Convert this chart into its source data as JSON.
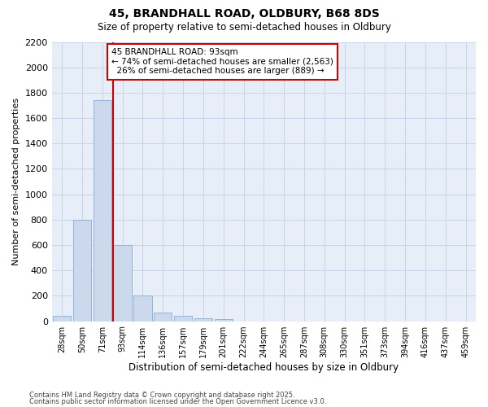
{
  "title1": "45, BRANDHALL ROAD, OLDBURY, B68 8DS",
  "title2": "Size of property relative to semi-detached houses in Oldbury",
  "xlabel": "Distribution of semi-detached houses by size in Oldbury",
  "ylabel": "Number of semi-detached properties",
  "categories": [
    "28sqm",
    "50sqm",
    "71sqm",
    "93sqm",
    "114sqm",
    "136sqm",
    "157sqm",
    "179sqm",
    "201sqm",
    "222sqm",
    "244sqm",
    "265sqm",
    "287sqm",
    "308sqm",
    "330sqm",
    "351sqm",
    "373sqm",
    "394sqm",
    "416sqm",
    "437sqm",
    "459sqm"
  ],
  "values": [
    40,
    800,
    1740,
    600,
    200,
    65,
    40,
    25,
    15,
    0,
    0,
    0,
    0,
    0,
    0,
    0,
    0,
    0,
    0,
    0,
    0
  ],
  "bar_color": "#ccd9ed",
  "bar_edge_color": "#8aadd4",
  "vline_color": "#cc0000",
  "annotation_text": "45 BRANDHALL ROAD: 93sqm\n← 74% of semi-detached houses are smaller (2,563)\n  26% of semi-detached houses are larger (889) →",
  "annotation_box_color": "#ffffff",
  "annotation_box_edge": "#cc0000",
  "ylim": [
    0,
    2200
  ],
  "yticks": [
    0,
    200,
    400,
    600,
    800,
    1000,
    1200,
    1400,
    1600,
    1800,
    2000,
    2200
  ],
  "grid_color": "#c8d4e8",
  "background_color": "#e8eef8",
  "footer1": "Contains HM Land Registry data © Crown copyright and database right 2025.",
  "footer2": "Contains public sector information licensed under the Open Government Licence v3.0."
}
